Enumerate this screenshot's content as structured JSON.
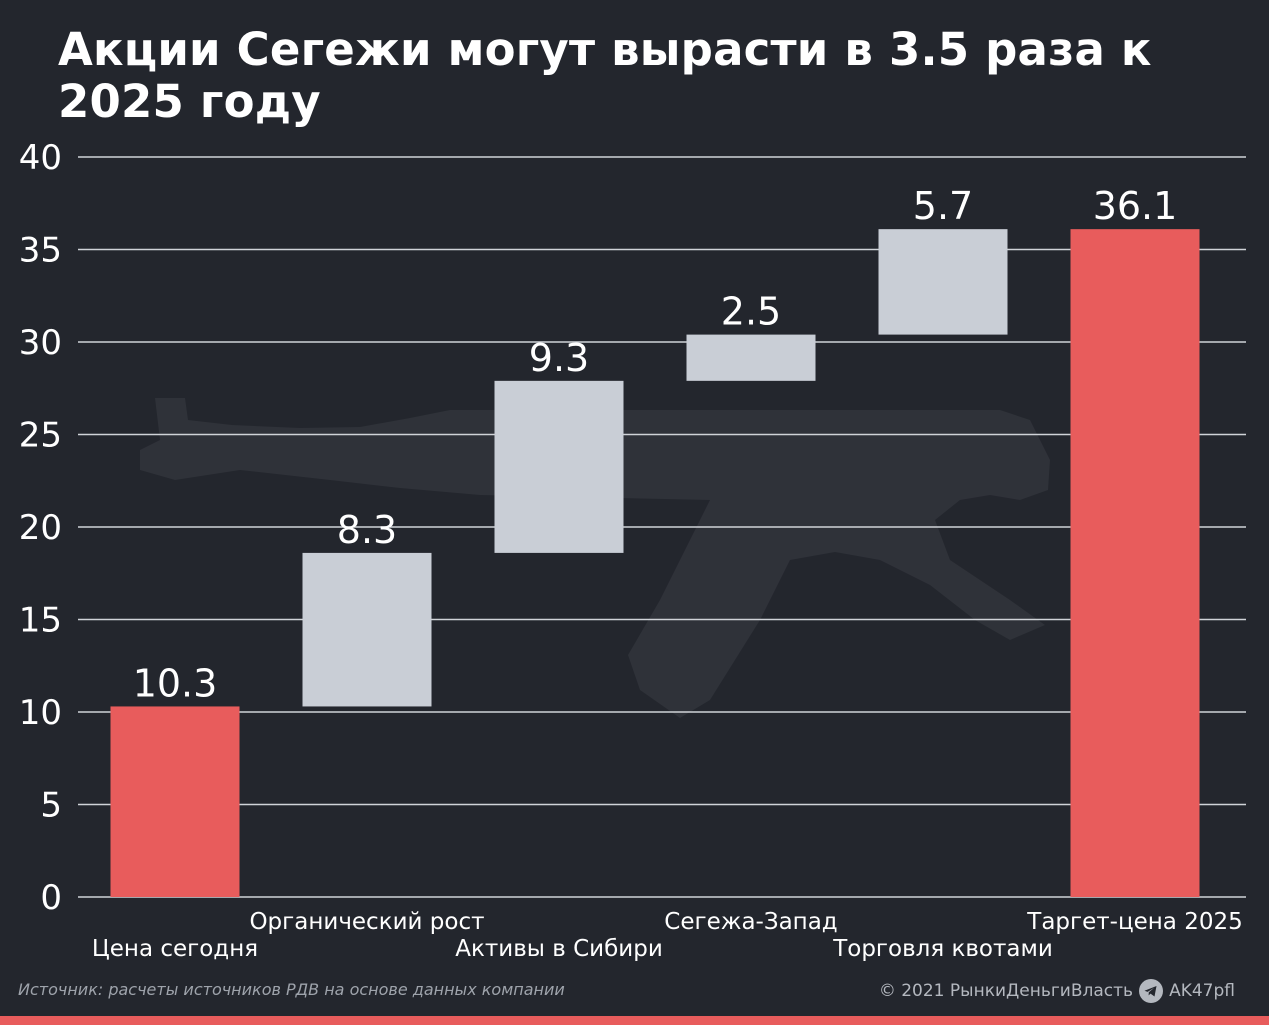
{
  "chart_data": {
    "type": "bar",
    "subtype": "waterfall",
    "title": "Акции Сегежи могут вырасти в 3.5 раза к 2025 году",
    "xlabel": "",
    "ylabel": "",
    "ylim": [
      0,
      40
    ],
    "yticks": [
      "0",
      "5",
      "10",
      "15",
      "20",
      "25",
      "30",
      "35",
      "40"
    ],
    "grid": true,
    "categories": [
      "Цена сегодня",
      "Органический рост",
      "Активы в Сибири",
      "Сегежа-Запад",
      "Торговля квотами",
      "Таргет-цена 2025"
    ],
    "values": [
      10.3,
      8.3,
      9.3,
      2.5,
      5.7,
      36.1
    ],
    "labels": [
      "10.3",
      "8.3",
      "9.3",
      "2.5",
      "5.7",
      "36.1"
    ],
    "bar_roles": [
      "total",
      "increment",
      "increment",
      "increment",
      "increment",
      "total"
    ],
    "colors": {
      "total": "#e85c5c",
      "increment": "#c9ced6",
      "background": "#23262d",
      "grid": "#d0d3d8"
    }
  },
  "footer": {
    "source": "Источник: расчеты источников РДВ на основе данных компании",
    "copyright": "© 2021  РынкиДеньгиВласть",
    "handle": "AK47pfl",
    "icon": "telegram-icon"
  }
}
